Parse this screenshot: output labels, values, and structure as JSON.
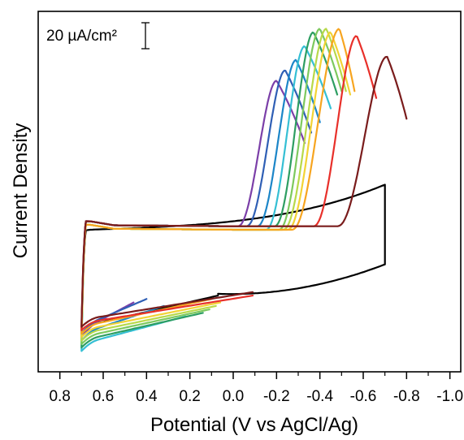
{
  "chart_data": {
    "type": "line",
    "title": "",
    "xlabel": "Potential (V vs AgCl/Ag)",
    "ylabel": "Current Density",
    "x_reversed": true,
    "xlim": [
      0.9,
      -1.05
    ],
    "ylim": [
      -8,
      96
    ],
    "x_ticks": [
      0.8,
      0.6,
      0.4,
      0.2,
      0.0,
      -0.2,
      -0.4,
      -0.6,
      -0.8,
      -1.0
    ],
    "x_tick_labels": [
      "0.8",
      "0.6",
      "0.4",
      "0.2",
      "0.0",
      "-0.2",
      "-0.4",
      "-0.6",
      "-0.8",
      "-1.0"
    ],
    "y_ticks_shown": false,
    "grid": false,
    "legend": "none",
    "scale_bar": {
      "label": "20 µA/cm²",
      "value": 20
    },
    "series": [
      {
        "color": "#7B3FA8",
        "turn": 0.46,
        "onset": -0.02,
        "peak_x": -0.2,
        "peak_y": 76,
        "end_x": -0.33,
        "start_lo": 12,
        "start_up": 34
      },
      {
        "color": "#2F5FB5",
        "turn": 0.4,
        "onset": -0.06,
        "peak_x": -0.24,
        "peak_y": 79,
        "end_x": -0.36,
        "start_lo": 13,
        "start_up": 34
      },
      {
        "color": "#1C86C8",
        "turn": 0.32,
        "onset": -0.11,
        "peak_x": -0.29,
        "peak_y": 82,
        "end_x": -0.4,
        "start_lo": 11,
        "start_up": 34
      },
      {
        "color": "#35BFD4",
        "turn": 0.22,
        "onset": -0.15,
        "peak_x": -0.33,
        "peak_y": 86,
        "end_x": -0.45,
        "start_lo": 8,
        "start_up": 33
      },
      {
        "color": "#2E9E62",
        "turn": 0.14,
        "onset": -0.19,
        "peak_x": -0.37,
        "peak_y": 90,
        "end_x": -0.48,
        "start_lo": 9,
        "start_up": 34
      },
      {
        "color": "#7DC95E",
        "turn": 0.11,
        "onset": -0.21,
        "peak_x": -0.4,
        "peak_y": 91,
        "end_x": -0.5,
        "start_lo": 10,
        "start_up": 33
      },
      {
        "color": "#B8D94A",
        "turn": 0.08,
        "onset": -0.23,
        "peak_x": -0.43,
        "peak_y": 91,
        "end_x": -0.52,
        "start_lo": 11,
        "start_up": 33
      },
      {
        "color": "#F2D335",
        "turn": 0.06,
        "onset": -0.25,
        "peak_x": -0.45,
        "peak_y": 90,
        "end_x": -0.54,
        "start_lo": 12,
        "start_up": 33
      },
      {
        "color": "#F7A520",
        "turn": 0.1,
        "onset": -0.27,
        "peak_x": -0.49,
        "peak_y": 91,
        "end_x": -0.56,
        "start_lo": 13,
        "start_up": 33
      },
      {
        "color": "#E8302A",
        "turn": -0.09,
        "onset": -0.37,
        "peak_x": -0.57,
        "peak_y": 89,
        "end_x": -0.66,
        "start_lo": 14,
        "start_up": 34
      },
      {
        "color": "#7A1C1C",
        "turn": -0.09,
        "onset": -0.48,
        "peak_x": -0.71,
        "peak_y": 83,
        "end_x": -0.8,
        "start_lo": 15,
        "start_up": 34
      }
    ],
    "background_scan": {
      "color": "#000000",
      "turn": 0.07,
      "switch_x": -0.7,
      "switch_y_low": 23,
      "switch_y_high": 46,
      "start_lo": 14,
      "start_up": 33
    }
  }
}
